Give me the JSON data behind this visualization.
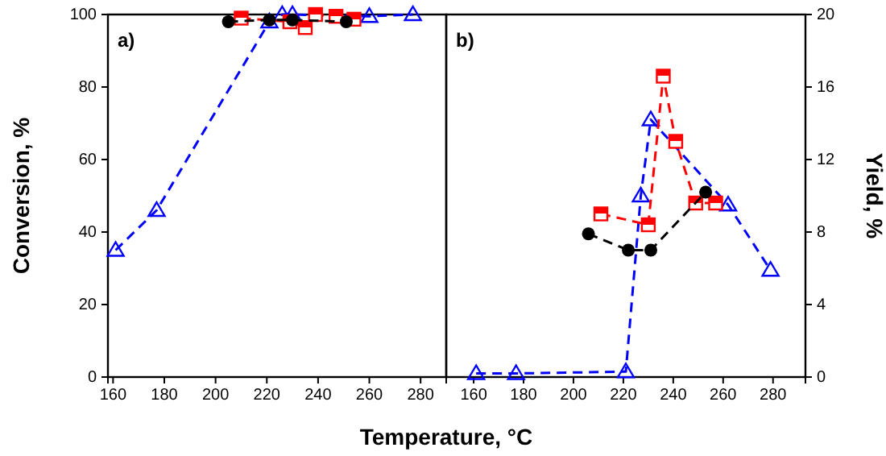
{
  "chart_data": [
    {
      "type": "line",
      "title": "a)",
      "xlabel": "Temperature, °C",
      "ylabel": "Conversion, %",
      "xlim": [
        158,
        290
      ],
      "xticks": [
        160,
        180,
        200,
        220,
        240,
        260,
        280
      ],
      "ylim": [
        0,
        100
      ],
      "yticks": [
        0,
        20,
        40,
        60,
        80,
        100
      ],
      "line_style": "dashed",
      "series": [
        {
          "color": "#0000ff",
          "marker": "triangle",
          "x": [
            161,
            177,
            221,
            226,
            230,
            260,
            277
          ],
          "values": [
            35,
            46,
            98,
            100,
            100,
            99.5,
            100
          ]
        },
        {
          "color": "#ff0000",
          "marker": "square",
          "x": [
            210,
            229,
            235,
            239,
            247,
            254
          ],
          "values": [
            99,
            98,
            96.4,
            100,
            99.5,
            98.7
          ]
        },
        {
          "color": "#000000",
          "marker": "circle",
          "x": [
            205,
            221,
            230,
            251
          ],
          "values": [
            98,
            98.5,
            98.5,
            98
          ]
        }
      ]
    },
    {
      "type": "line",
      "title": "b)",
      "y2label": "Yield, %",
      "xlim": [
        149,
        293
      ],
      "xticks": [
        160,
        180,
        200,
        220,
        240,
        260,
        280
      ],
      "y2lim": [
        0,
        20
      ],
      "y2ticks": [
        0,
        4,
        8,
        12,
        16,
        20
      ],
      "line_style": "dashed",
      "series": [
        {
          "axis": "y2",
          "color": "#0000ff",
          "marker": "triangle",
          "x": [
            161,
            177,
            221,
            227,
            231,
            262,
            279
          ],
          "values": [
            0.2,
            0.2,
            0.3,
            10,
            14.2,
            9.5,
            5.9
          ]
        },
        {
          "axis": "y2",
          "color": "#ff0000",
          "marker": "square",
          "x": [
            211,
            230,
            236,
            241,
            249,
            257
          ],
          "values": [
            9,
            8.4,
            16.6,
            13,
            9.6,
            9.6
          ]
        },
        {
          "axis": "y2",
          "color": "#000000",
          "marker": "circle",
          "x": [
            206,
            222,
            231,
            253
          ],
          "values": [
            7.9,
            7,
            7,
            10.2
          ]
        }
      ]
    }
  ]
}
